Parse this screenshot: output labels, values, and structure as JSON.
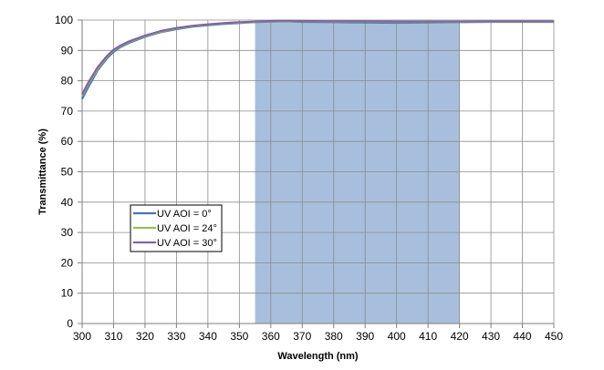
{
  "chart_data": {
    "type": "line",
    "title": "",
    "xlabel": "Wavelength (nm)",
    "ylabel": "Transmittance (%)",
    "xlim": [
      300,
      450
    ],
    "ylim": [
      0,
      100
    ],
    "xticks": [
      300,
      310,
      320,
      330,
      340,
      350,
      360,
      370,
      380,
      390,
      400,
      410,
      420,
      430,
      440,
      450
    ],
    "yticks": [
      0,
      10,
      20,
      30,
      40,
      50,
      60,
      70,
      80,
      90,
      100
    ],
    "grid": true,
    "legend_position": "lower-left",
    "shaded_band": {
      "x_start": 355,
      "x_end": 420,
      "color": "#a7bfdc"
    },
    "series": [
      {
        "name": "UV AOI = 0°",
        "color": "#4a72b8",
        "x": [
          300,
          302,
          305,
          308,
          310,
          312,
          315,
          320,
          325,
          330,
          335,
          340,
          345,
          350,
          355,
          360,
          365,
          370,
          380,
          390,
          400,
          410,
          420,
          430,
          440,
          450
        ],
        "y": [
          74,
          78,
          83.5,
          87.5,
          89.5,
          91,
          92.5,
          94.5,
          96,
          97,
          97.8,
          98.3,
          98.7,
          99,
          99.3,
          99.5,
          99.6,
          99.4,
          99.3,
          99.2,
          99.1,
          99.2,
          99.3,
          99.4,
          99.4,
          99.4
        ]
      },
      {
        "name": "UV AOI = 24°",
        "color": "#9bbb59",
        "x": [
          300,
          302,
          305,
          308,
          310,
          312,
          315,
          320,
          325,
          330,
          335,
          340,
          345,
          350,
          355,
          360,
          365,
          370,
          380,
          390,
          400,
          410,
          420,
          430,
          440,
          450
        ],
        "y": [
          75,
          79,
          84,
          88,
          90,
          91.3,
          92.8,
          94.7,
          96.2,
          97.2,
          98,
          98.5,
          98.9,
          99.2,
          99.4,
          99.6,
          99.7,
          99.6,
          99.5,
          99.5,
          99.4,
          99.4,
          99.4,
          99.5,
          99.5,
          99.5
        ]
      },
      {
        "name": "UV AOI = 30°",
        "color": "#8064a2",
        "x": [
          300,
          302,
          305,
          308,
          310,
          312,
          315,
          320,
          325,
          330,
          335,
          340,
          345,
          350,
          355,
          360,
          365,
          370,
          380,
          390,
          400,
          410,
          420,
          430,
          440,
          450
        ],
        "y": [
          75.5,
          79.5,
          84.5,
          88.3,
          90.2,
          91.5,
          93,
          94.9,
          96.4,
          97.4,
          98.1,
          98.6,
          99,
          99.3,
          99.5,
          99.7,
          99.8,
          99.7,
          99.6,
          99.6,
          99.5,
          99.5,
          99.5,
          99.6,
          99.6,
          99.6
        ]
      }
    ]
  }
}
